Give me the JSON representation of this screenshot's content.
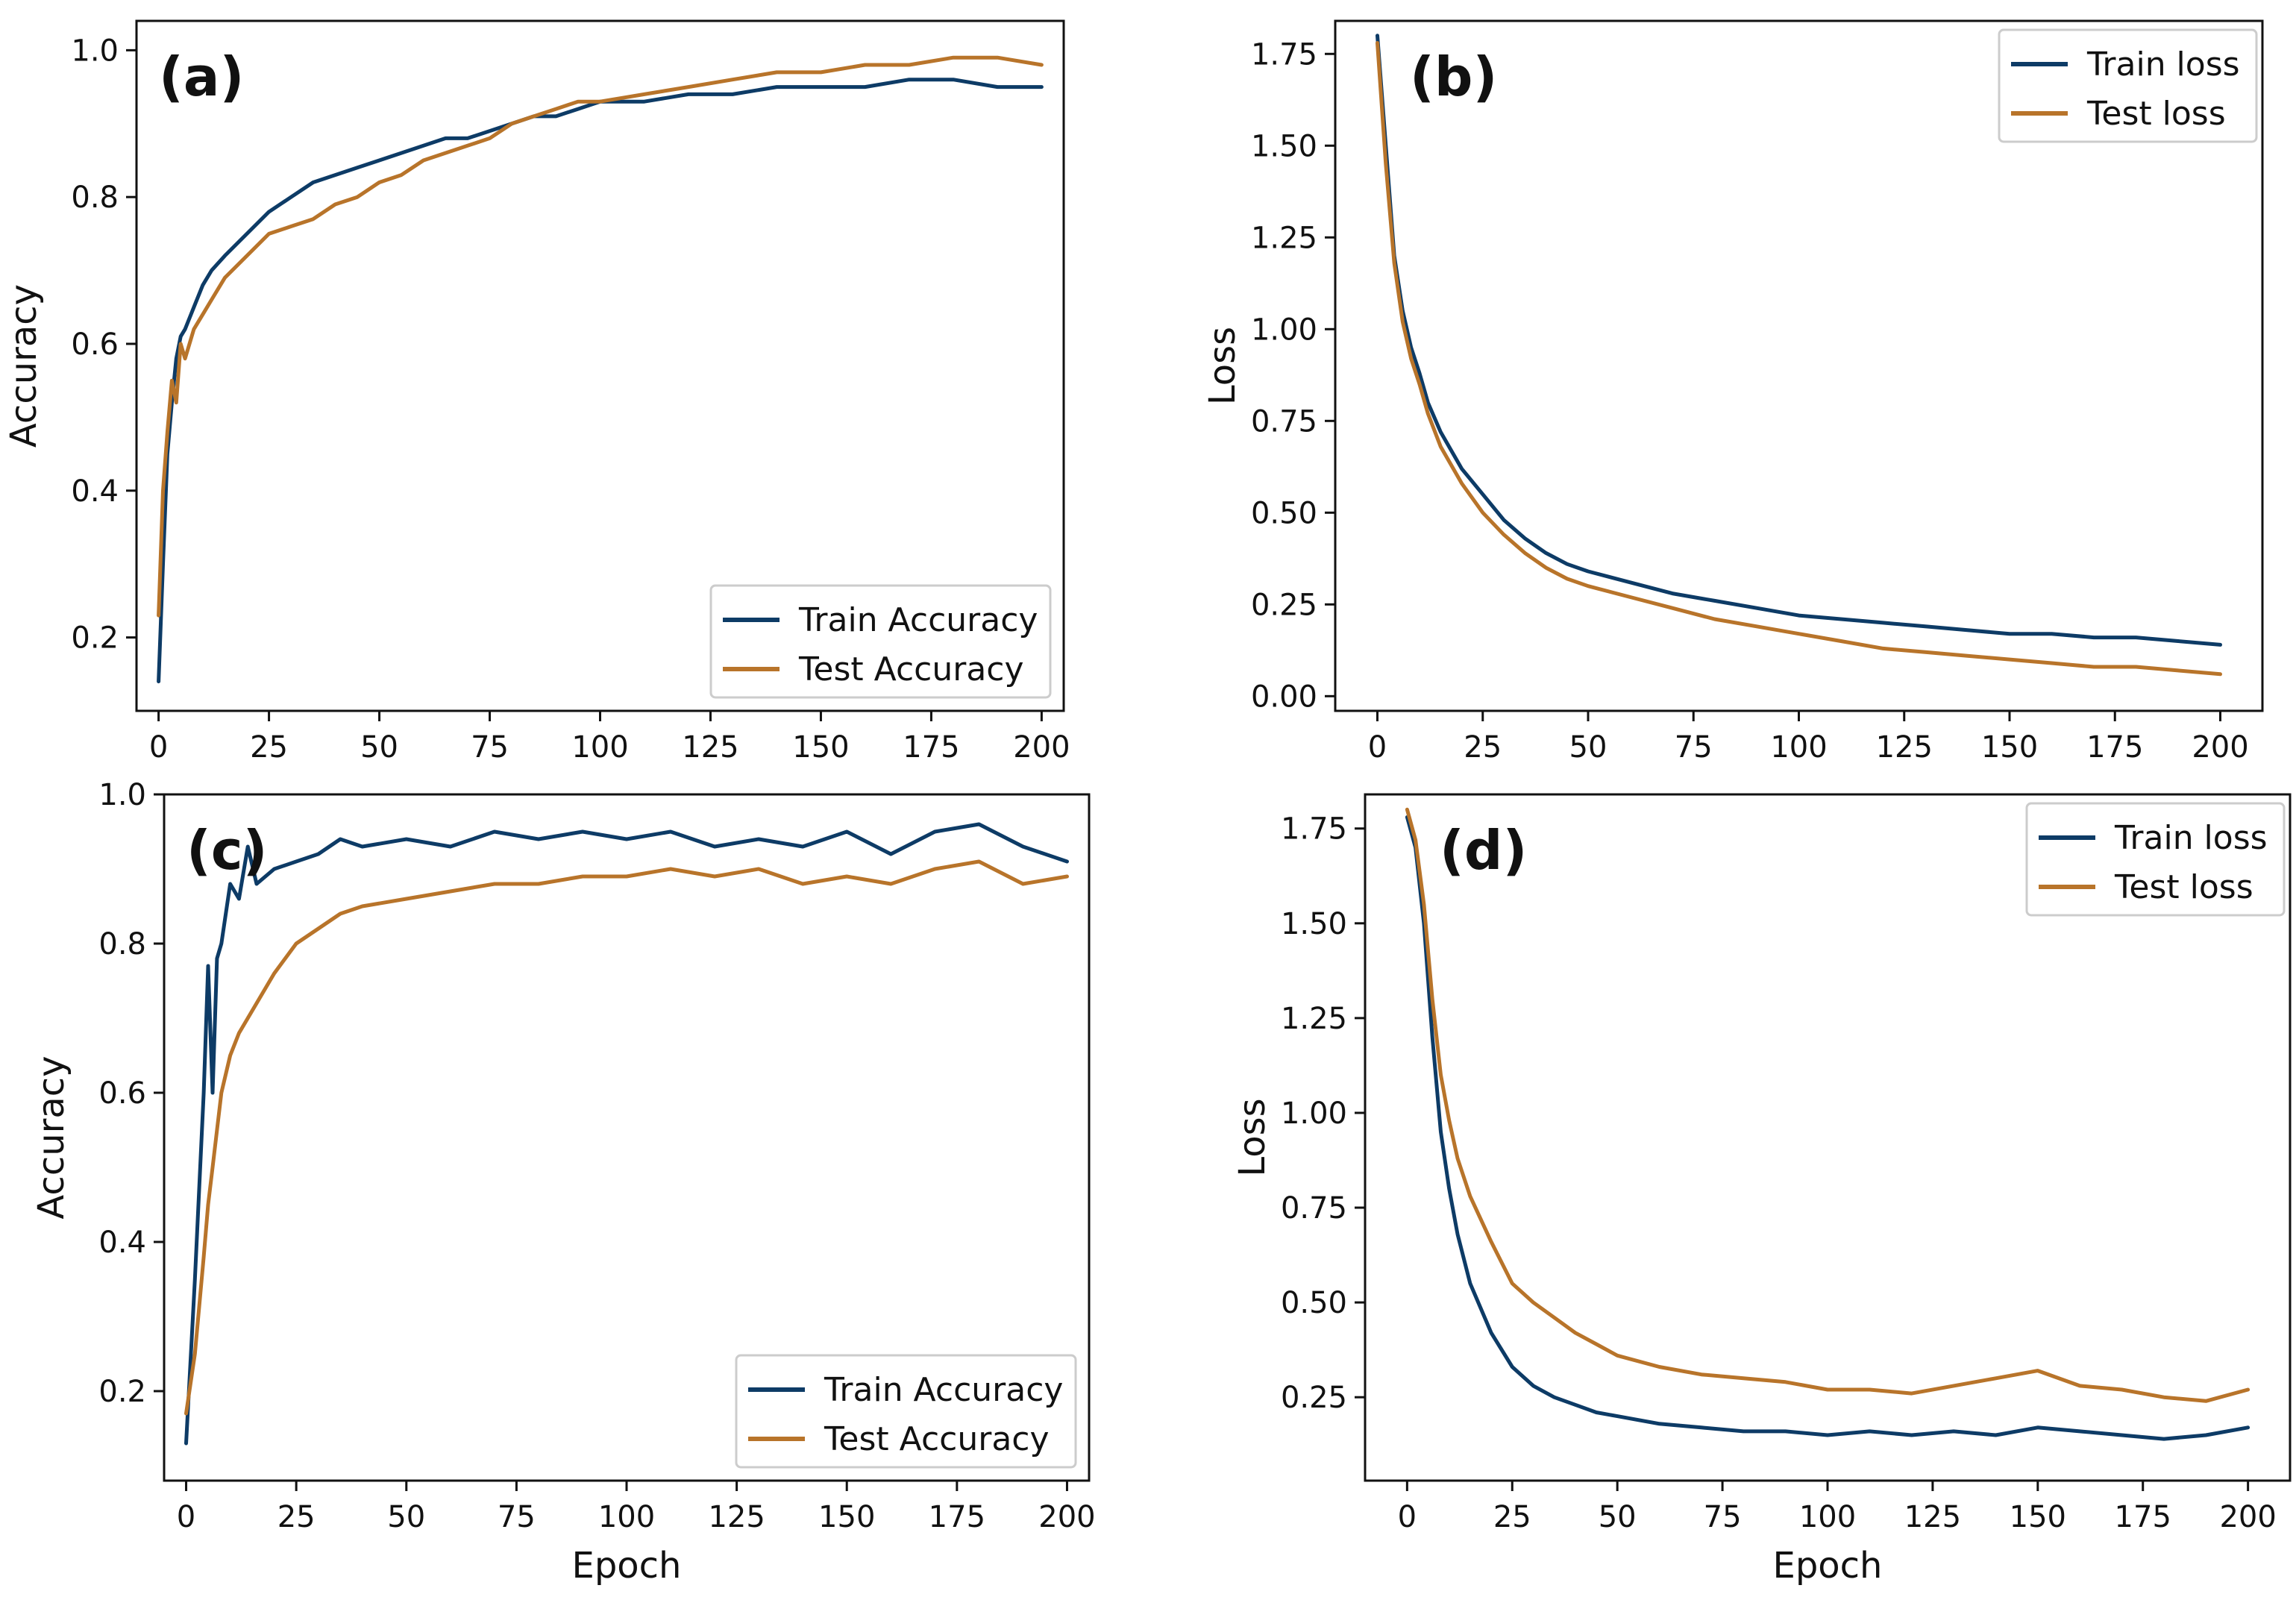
{
  "colors": {
    "train": "#0d3b66",
    "test": "#b8742a",
    "axis": "#111111",
    "legend_border": "#cccccc"
  },
  "chart_data": [
    {
      "id": "a",
      "type": "line",
      "panel_label": "(a)",
      "xlabel": "",
      "ylabel": "Accuracy",
      "xlim": [
        -5,
        205
      ],
      "ylim": [
        0.1,
        1.04
      ],
      "xticks": [
        0,
        25,
        50,
        75,
        100,
        125,
        150,
        175,
        200
      ],
      "yticks": [
        0.2,
        0.4,
        0.6,
        0.8,
        1.0
      ],
      "ytick_labels": [
        "0.2",
        "0.4",
        "0.6",
        "0.8",
        "1.0"
      ],
      "legend": {
        "position": "lower-right",
        "entries": [
          "Train Accuracy",
          "Test Accuracy"
        ]
      },
      "series": [
        {
          "name": "Train Accuracy",
          "x": [
            0,
            1,
            2,
            3,
            4,
            5,
            6,
            8,
            10,
            12,
            15,
            20,
            25,
            30,
            35,
            40,
            45,
            50,
            55,
            60,
            65,
            70,
            75,
            80,
            85,
            90,
            95,
            100,
            110,
            120,
            130,
            140,
            150,
            160,
            170,
            180,
            190,
            200
          ],
          "y": [
            0.14,
            0.3,
            0.45,
            0.52,
            0.58,
            0.61,
            0.62,
            0.65,
            0.68,
            0.7,
            0.72,
            0.75,
            0.78,
            0.8,
            0.82,
            0.83,
            0.84,
            0.85,
            0.86,
            0.87,
            0.88,
            0.88,
            0.89,
            0.9,
            0.91,
            0.91,
            0.92,
            0.93,
            0.93,
            0.94,
            0.94,
            0.95,
            0.95,
            0.95,
            0.96,
            0.96,
            0.95,
            0.95
          ]
        },
        {
          "name": "Test Accuracy",
          "x": [
            0,
            1,
            2,
            3,
            4,
            5,
            6,
            8,
            10,
            12,
            15,
            20,
            25,
            30,
            35,
            40,
            45,
            50,
            55,
            60,
            65,
            70,
            75,
            80,
            85,
            90,
            95,
            100,
            110,
            120,
            130,
            140,
            150,
            160,
            170,
            180,
            190,
            200
          ],
          "y": [
            0.23,
            0.4,
            0.48,
            0.55,
            0.52,
            0.6,
            0.58,
            0.62,
            0.64,
            0.66,
            0.69,
            0.72,
            0.75,
            0.76,
            0.77,
            0.79,
            0.8,
            0.82,
            0.83,
            0.85,
            0.86,
            0.87,
            0.88,
            0.9,
            0.91,
            0.92,
            0.93,
            0.93,
            0.94,
            0.95,
            0.96,
            0.97,
            0.97,
            0.98,
            0.98,
            0.99,
            0.99,
            0.98
          ]
        }
      ]
    },
    {
      "id": "b",
      "type": "line",
      "panel_label": "(b)",
      "xlabel": "",
      "ylabel": "Loss",
      "xlim": [
        -10,
        210
      ],
      "ylim": [
        -0.04,
        1.84
      ],
      "xticks": [
        0,
        25,
        50,
        75,
        100,
        125,
        150,
        175,
        200
      ],
      "yticks": [
        0.0,
        0.25,
        0.5,
        0.75,
        1.0,
        1.25,
        1.5,
        1.75
      ],
      "ytick_labels": [
        "0.00",
        "0.25",
        "0.50",
        "0.75",
        "1.00",
        "1.25",
        "1.50",
        "1.75"
      ],
      "legend": {
        "position": "upper-right",
        "entries": [
          "Train loss",
          "Test loss"
        ]
      },
      "series": [
        {
          "name": "Train loss",
          "x": [
            0,
            2,
            4,
            6,
            8,
            10,
            12,
            15,
            20,
            25,
            30,
            35,
            40,
            45,
            50,
            60,
            70,
            80,
            90,
            100,
            110,
            120,
            130,
            140,
            150,
            160,
            170,
            180,
            190,
            200
          ],
          "y": [
            1.8,
            1.5,
            1.2,
            1.05,
            0.95,
            0.88,
            0.8,
            0.72,
            0.62,
            0.55,
            0.48,
            0.43,
            0.39,
            0.36,
            0.34,
            0.31,
            0.28,
            0.26,
            0.24,
            0.22,
            0.21,
            0.2,
            0.19,
            0.18,
            0.17,
            0.17,
            0.16,
            0.16,
            0.15,
            0.14
          ]
        },
        {
          "name": "Test loss",
          "x": [
            0,
            2,
            4,
            6,
            8,
            10,
            12,
            15,
            20,
            25,
            30,
            35,
            40,
            45,
            50,
            60,
            70,
            80,
            90,
            100,
            110,
            120,
            130,
            140,
            150,
            160,
            170,
            180,
            190,
            200
          ],
          "y": [
            1.78,
            1.45,
            1.18,
            1.02,
            0.92,
            0.85,
            0.77,
            0.68,
            0.58,
            0.5,
            0.44,
            0.39,
            0.35,
            0.32,
            0.3,
            0.27,
            0.24,
            0.21,
            0.19,
            0.17,
            0.15,
            0.13,
            0.12,
            0.11,
            0.1,
            0.09,
            0.08,
            0.08,
            0.07,
            0.06
          ]
        }
      ]
    },
    {
      "id": "c",
      "type": "line",
      "panel_label": "(c)",
      "xlabel": "Epoch",
      "ylabel": "Accuracy",
      "xlim": [
        -5,
        205
      ],
      "ylim": [
        0.08,
        1.0
      ],
      "xticks": [
        0,
        25,
        50,
        75,
        100,
        125,
        150,
        175,
        200
      ],
      "yticks": [
        0.2,
        0.4,
        0.6,
        0.8,
        1.0
      ],
      "ytick_labels": [
        "0.2",
        "0.4",
        "0.6",
        "0.8",
        "1.0"
      ],
      "legend": {
        "position": "lower-right",
        "entries": [
          "Train Accuracy",
          "Test Accuracy"
        ]
      },
      "series": [
        {
          "name": "Train Accuracy",
          "x": [
            0,
            2,
            4,
            5,
            6,
            7,
            8,
            10,
            12,
            14,
            16,
            20,
            25,
            30,
            35,
            40,
            50,
            60,
            70,
            80,
            90,
            100,
            110,
            120,
            130,
            140,
            150,
            160,
            170,
            180,
            190,
            200
          ],
          "y": [
            0.13,
            0.35,
            0.6,
            0.77,
            0.6,
            0.78,
            0.8,
            0.88,
            0.86,
            0.93,
            0.88,
            0.9,
            0.91,
            0.92,
            0.94,
            0.93,
            0.94,
            0.93,
            0.95,
            0.94,
            0.95,
            0.94,
            0.95,
            0.93,
            0.94,
            0.93,
            0.95,
            0.92,
            0.95,
            0.96,
            0.93,
            0.91
          ]
        },
        {
          "name": "Test Accuracy",
          "x": [
            0,
            2,
            4,
            5,
            6,
            7,
            8,
            10,
            12,
            14,
            16,
            20,
            25,
            30,
            35,
            40,
            50,
            60,
            70,
            80,
            90,
            100,
            110,
            120,
            130,
            140,
            150,
            160,
            170,
            180,
            190,
            200
          ],
          "y": [
            0.17,
            0.25,
            0.38,
            0.45,
            0.5,
            0.55,
            0.6,
            0.65,
            0.68,
            0.7,
            0.72,
            0.76,
            0.8,
            0.82,
            0.84,
            0.85,
            0.86,
            0.87,
            0.88,
            0.88,
            0.89,
            0.89,
            0.9,
            0.89,
            0.9,
            0.88,
            0.89,
            0.88,
            0.9,
            0.91,
            0.88,
            0.89
          ]
        }
      ]
    },
    {
      "id": "d",
      "type": "line",
      "panel_label": "(d)",
      "xlabel": "Epoch",
      "ylabel": "Loss",
      "xlim": [
        -10,
        210
      ],
      "ylim": [
        0.03,
        1.84
      ],
      "xticks": [
        0,
        25,
        50,
        75,
        100,
        125,
        150,
        175,
        200
      ],
      "yticks": [
        0.25,
        0.5,
        0.75,
        1.0,
        1.25,
        1.5,
        1.75
      ],
      "ytick_labels": [
        "0.25",
        "0.50",
        "0.75",
        "1.00",
        "1.25",
        "1.50",
        "1.75"
      ],
      "legend": {
        "position": "upper-right",
        "entries": [
          "Train loss",
          "Test loss"
        ]
      },
      "series": [
        {
          "name": "Train loss",
          "x": [
            0,
            2,
            4,
            6,
            8,
            10,
            12,
            15,
            20,
            25,
            30,
            35,
            40,
            45,
            50,
            60,
            70,
            80,
            90,
            100,
            110,
            120,
            130,
            140,
            150,
            160,
            170,
            180,
            190,
            200
          ],
          "y": [
            1.78,
            1.7,
            1.5,
            1.2,
            0.95,
            0.8,
            0.68,
            0.55,
            0.42,
            0.33,
            0.28,
            0.25,
            0.23,
            0.21,
            0.2,
            0.18,
            0.17,
            0.16,
            0.16,
            0.15,
            0.16,
            0.15,
            0.16,
            0.15,
            0.17,
            0.16,
            0.15,
            0.14,
            0.15,
            0.17
          ]
        },
        {
          "name": "Test loss",
          "x": [
            0,
            2,
            4,
            6,
            8,
            10,
            12,
            15,
            20,
            25,
            30,
            35,
            40,
            45,
            50,
            60,
            70,
            80,
            90,
            100,
            110,
            120,
            130,
            140,
            150,
            160,
            170,
            180,
            190,
            200
          ],
          "y": [
            1.8,
            1.72,
            1.55,
            1.3,
            1.1,
            0.98,
            0.88,
            0.78,
            0.66,
            0.55,
            0.5,
            0.46,
            0.42,
            0.39,
            0.36,
            0.33,
            0.31,
            0.3,
            0.29,
            0.27,
            0.27,
            0.26,
            0.28,
            0.3,
            0.32,
            0.28,
            0.27,
            0.25,
            0.24,
            0.27
          ]
        }
      ]
    }
  ]
}
